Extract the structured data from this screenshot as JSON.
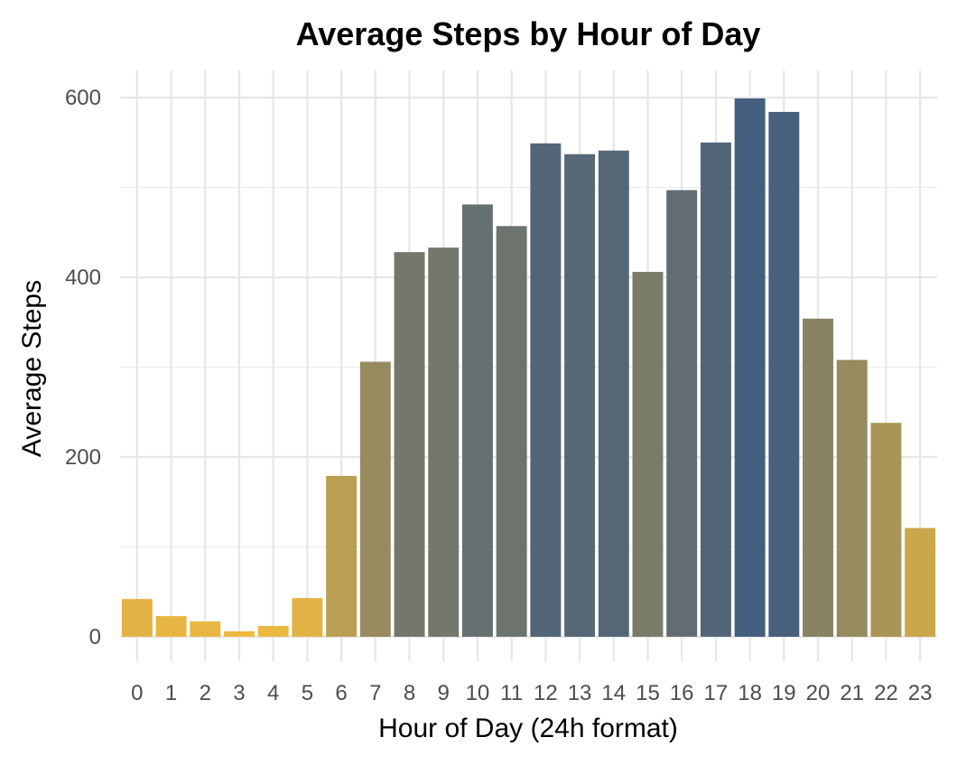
{
  "chart_data": {
    "type": "bar",
    "title": "Average Steps by Hour of Day",
    "xlabel": "Hour of Day (24h format)",
    "ylabel": "Average Steps",
    "categories": [
      "0",
      "1",
      "2",
      "3",
      "4",
      "5",
      "6",
      "7",
      "8",
      "9",
      "10",
      "11",
      "12",
      "13",
      "14",
      "15",
      "16",
      "17",
      "18",
      "19",
      "20",
      "21",
      "22",
      "23"
    ],
    "values": [
      42,
      23,
      17,
      6,
      12,
      43,
      179,
      306,
      428,
      433,
      481,
      457,
      549,
      537,
      541,
      406,
      497,
      550,
      599,
      584,
      354,
      308,
      238,
      121
    ],
    "ylim": [
      0,
      600
    ],
    "yticks": [
      "0",
      "200",
      "400",
      "600"
    ],
    "yticks_values": [
      0,
      200,
      400,
      600
    ],
    "grid": true,
    "legend": "none",
    "color_scale": {
      "low": "#ECB840",
      "high": "#445E7D"
    }
  }
}
